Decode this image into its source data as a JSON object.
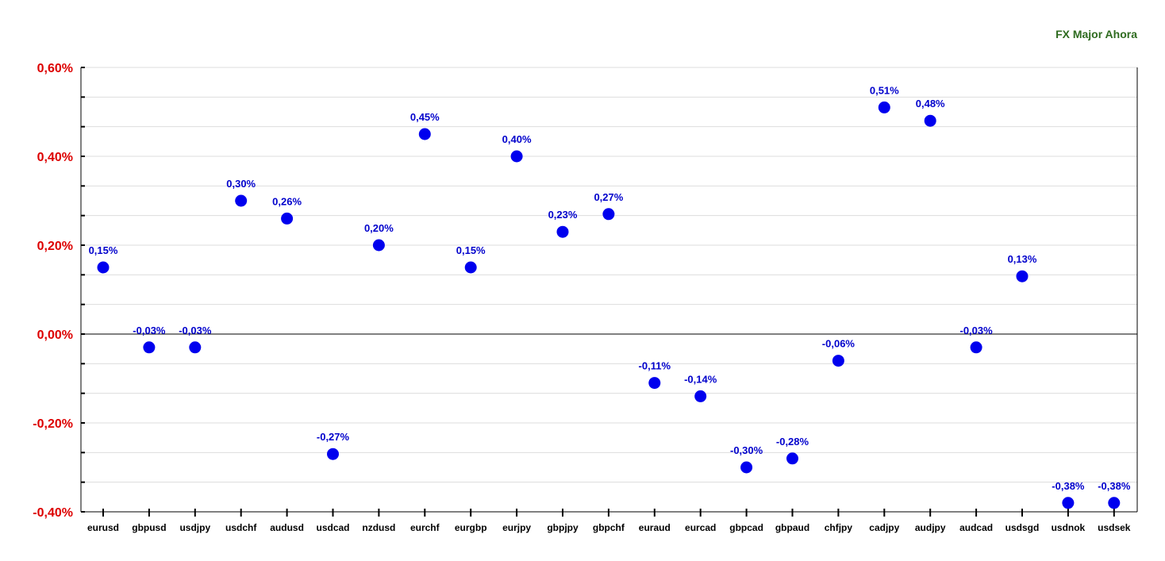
{
  "chart_data": {
    "type": "scatter",
    "title": "FX Major Ahora",
    "xlabel": "",
    "ylabel": "",
    "categories": [
      "eurusd",
      "gbpusd",
      "usdjpy",
      "usdchf",
      "audusd",
      "usdcad",
      "nzdusd",
      "eurchf",
      "eurgbp",
      "eurjpy",
      "gbpjpy",
      "gbpchf",
      "euraud",
      "eurcad",
      "gbpcad",
      "gbpaud",
      "chfjpy",
      "cadjpy",
      "audjpy",
      "audcad",
      "usdsgd",
      "usdnok",
      "usdsek"
    ],
    "values": [
      0.15,
      -0.03,
      -0.03,
      0.3,
      0.26,
      -0.27,
      0.2,
      0.45,
      0.15,
      0.4,
      0.23,
      0.27,
      -0.11,
      -0.14,
      -0.3,
      -0.28,
      -0.06,
      0.51,
      0.48,
      -0.03,
      0.13,
      -0.38,
      -0.38
    ],
    "data_labels": [
      "0,15%",
      "-0,03%",
      "-0,03%",
      "0,30%",
      "0,26%",
      "-0,27%",
      "0,20%",
      "0,45%",
      "0,15%",
      "0,40%",
      "0,23%",
      "0,27%",
      "-0,11%",
      "-0,14%",
      "-0,30%",
      "-0,28%",
      "-0,06%",
      "0,51%",
      "0,48%",
      "-0,03%",
      "0,13%",
      "-0,38%",
      "-0,38%"
    ],
    "ylim": [
      -0.4,
      0.6
    ],
    "yticks": [
      0.6,
      0.4,
      0.2,
      0.0,
      -0.2,
      -0.4
    ],
    "ytick_labels": [
      "0,60%",
      "0,40%",
      "0,20%",
      "0,00%",
      "-0,20%",
      "-0,40%"
    ],
    "grid": true,
    "colors": {
      "points": "#0000ee",
      "data_labels": "#0000cc",
      "y_ticks": "#dd0000",
      "title": "#2e6b1f",
      "grid": "#dddddd",
      "axis": "#000000"
    }
  }
}
